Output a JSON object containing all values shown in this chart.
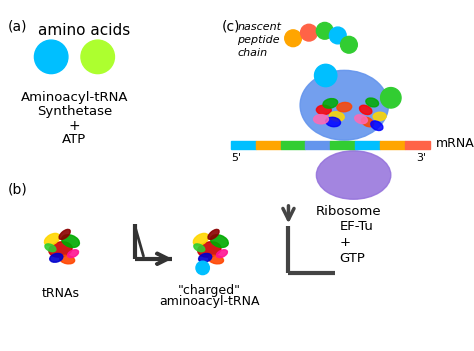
{
  "bg_color": "#ffffff",
  "panel_a": {
    "label": "(a)",
    "title": "amino acids",
    "circle1_color": "#00BFFF",
    "circle2_color": "#ADFF2F",
    "text_lines": [
      "Aminoacyl-tRNA",
      "Synthetase",
      "+",
      "ATP"
    ]
  },
  "panel_b": {
    "label": "(b)",
    "trna_color_hint": "multicolor",
    "charged_trna_ball_color": "#00BFFF",
    "arrow_color": "#555555",
    "label_trna": "tRNAs",
    "label_charged": "\"charged\"",
    "label_aminoacyl": "aminoacyl-tRNA",
    "label_eftu": "EF-Tu\n+\nGTP"
  },
  "panel_c": {
    "label": "(c)",
    "nascent_text": [
      "nascent",
      "peptide",
      "chain"
    ],
    "ribosome_large_color": "#6495ED",
    "ribosome_small_color": "#9370DB",
    "mrna_label": "mRNA",
    "ribosome_label": "Ribosome",
    "prime5": "5'",
    "prime3": "3'",
    "peptide_ball_colors": [
      "#FF8C00",
      "#FF6347",
      "#32CD32",
      "#00BFFF",
      "#32CD32"
    ],
    "mrna_colors": [
      "#00BFFF",
      "#FFA500",
      "#32CD32",
      "#6495ED",
      "#32CD32",
      "#00BFFF",
      "#FFA500",
      "#FF6347"
    ],
    "small_ball_color": "#32CD32"
  }
}
